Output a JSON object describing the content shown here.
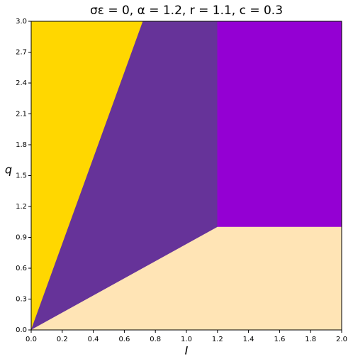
{
  "chart_data": {
    "type": "region",
    "title": "σε = 0, α =  1.2, r =  1.1, c =  0.3",
    "xlabel": "I",
    "ylabel": "q",
    "xlim": [
      0,
      2.0
    ],
    "ylim": [
      0,
      3.0
    ],
    "xticks": [
      {
        "value": 0,
        "label": "0.0"
      },
      0.2,
      0.4,
      0.6,
      0.8,
      {
        "value": 1,
        "label": "1.0"
      },
      1.2,
      1.4,
      1.6,
      1.8,
      {
        "value": 2,
        "label": "2.0"
      }
    ],
    "yticks": [
      {
        "value": 0,
        "label": "0.0"
      },
      0.3,
      0.6,
      0.9,
      1.2,
      1.5,
      1.8,
      2.1,
      2.4,
      2.7,
      {
        "value": 3,
        "label": "3.0"
      }
    ],
    "regions": [
      {
        "color": "#ffd700",
        "x": [
          0,
          0.72,
          0
        ],
        "y": [
          0,
          3.0,
          3.0
        ]
      },
      {
        "color": "#663399",
        "x": [
          0,
          0.72,
          1.2,
          1.2
        ],
        "y": [
          0,
          3.0,
          3.0,
          1.0
        ]
      },
      {
        "color": "#9400d3",
        "x": [
          1.2,
          1.2,
          2.0,
          2.0
        ],
        "y": [
          1.0,
          3.0,
          3.0,
          1.0
        ]
      },
      {
        "color": "#ffe4b5",
        "x": [
          0,
          1.2,
          2.0,
          2.0
        ],
        "y": [
          0,
          1.0,
          1.0,
          0
        ]
      }
    ]
  }
}
